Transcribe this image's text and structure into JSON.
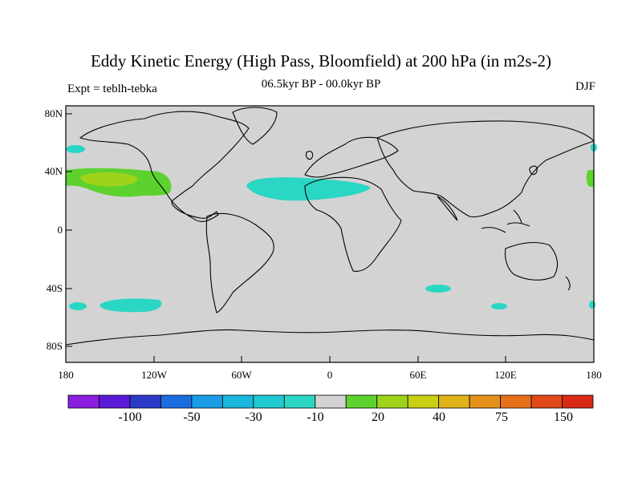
{
  "title": "Eddy Kinetic Energy (High Pass, Bloomfield) at 200 hPa (in m2s-2)",
  "subtitle_left": "Expt = teblh-tebka",
  "subtitle_center": "06.5kyr BP - 00.0kyr BP",
  "subtitle_right": "DJF",
  "lat_ticks": [
    "80N",
    "40N",
    "0",
    "40S",
    "80S"
  ],
  "lon_ticks": [
    "180",
    "120W",
    "60W",
    "0",
    "60E",
    "120E",
    "180"
  ],
  "colors": {
    "background": "#d3d3d3",
    "coast": "#000000",
    "neg_anomaly": "#2ad6c4",
    "pos_20": "#5dd22e",
    "pos_30": "#9fd21a"
  },
  "colorbar": {
    "colors": [
      "#8b1fe0",
      "#5a1ad6",
      "#2c3ac8",
      "#1a6ee0",
      "#1a9ce6",
      "#19b8dc",
      "#1ec9cf",
      "#2ad6c4",
      "#d3d3d3",
      "#5dd22e",
      "#9fd21a",
      "#c9cf12",
      "#e0b21a",
      "#e6921a",
      "#e6701a",
      "#e04a1a",
      "#d82a14"
    ],
    "labels": [
      "-100",
      "-50",
      "-30",
      "-10",
      "20",
      "40",
      "75",
      "150"
    ]
  }
}
